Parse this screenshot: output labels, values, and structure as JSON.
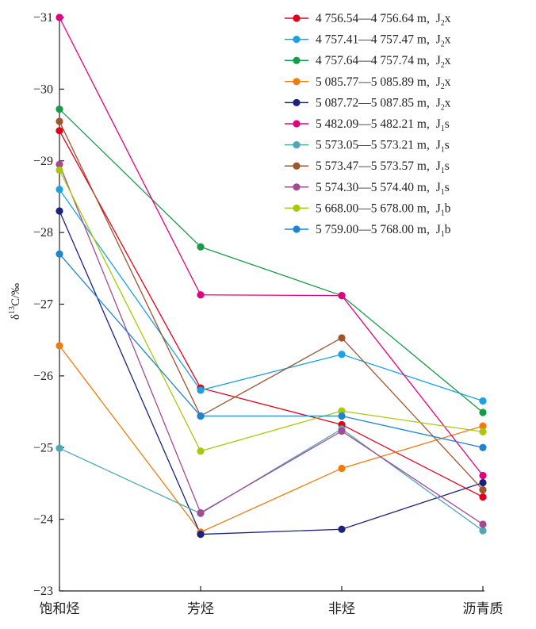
{
  "chart_data": {
    "type": "line",
    "title": "",
    "xlabel": "",
    "ylabel": "δ13C/‰",
    "ylabel_parts": {
      "symbol": "δ",
      "superscript": "13",
      "rest": "C/‰"
    },
    "y_axis_reversed": true,
    "ylim": [
      -23,
      -31
    ],
    "yticks": [
      -31,
      -30,
      -29,
      -28,
      -27,
      -26,
      -25,
      -24,
      -23
    ],
    "ytick_labels": [
      "−31",
      "−30",
      "−29",
      "−28",
      "−27",
      "−26",
      "−25",
      "−24",
      "−23"
    ],
    "categories": [
      "饱和烃",
      "芳烃",
      "非烃",
      "沥青质"
    ],
    "grid": false,
    "legend_position": "top-right",
    "series": [
      {
        "name": "4 756.54—4 756.64 m, J2x",
        "depth": "4 756.54—4 756.64 m",
        "unit": "J",
        "unit_sub": "2",
        "unit_suffix": "x",
        "color": "#e3001b",
        "values": [
          -29.42,
          -25.83,
          -25.32,
          -24.31
        ]
      },
      {
        "name": "4 757.41—4 757.47 m, J2x",
        "depth": "4 757.41—4 757.47 m",
        "unit": "J",
        "unit_sub": "2",
        "unit_suffix": "x",
        "color": "#1aa3e0",
        "values": [
          -28.6,
          -25.8,
          -26.3,
          -25.65
        ]
      },
      {
        "name": "4 757.64—4 757.74 m, J2x",
        "depth": "4 757.64—4 757.74 m",
        "unit": "J",
        "unit_sub": "2",
        "unit_suffix": "x",
        "color": "#169b48",
        "values": [
          -29.72,
          -27.8,
          -27.12,
          -25.49
        ]
      },
      {
        "name": "5 085.77—5 085.89 m, J2x",
        "depth": "5 085.77—5 085.89 m",
        "unit": "J",
        "unit_sub": "2",
        "unit_suffix": "x",
        "color": "#f07c10",
        "values": [
          -26.42,
          -23.82,
          -24.71,
          -25.3
        ]
      },
      {
        "name": "5 087.72—5 087.85 m, J2x",
        "depth": "5 087.72—5 087.85 m",
        "unit": "J",
        "unit_sub": "2",
        "unit_suffix": "x",
        "color": "#1c2181",
        "values": [
          -28.3,
          -23.79,
          -23.86,
          -24.51
        ]
      },
      {
        "name": "5 482.09—5 482.21 m, J1s",
        "depth": "5 482.09—5 482.21 m",
        "unit": "J",
        "unit_sub": "1",
        "unit_suffix": "s",
        "color": "#e4007f",
        "values": [
          -31.0,
          -27.13,
          -27.12,
          -24.61
        ]
      },
      {
        "name": "5 573.05—5 573.21 m, J1s",
        "depth": "5 573.05—5 573.21 m",
        "unit": "J",
        "unit_sub": "1",
        "unit_suffix": "s",
        "color": "#4fa8b8",
        "values": [
          -24.99,
          -24.08,
          -25.26,
          -23.84
        ]
      },
      {
        "name": "5 573.47—5 573.57 m, J1s",
        "depth": "5 573.47—5 573.57 m",
        "unit": "J",
        "unit_sub": "1",
        "unit_suffix": "s",
        "color": "#a0532d",
        "values": [
          -29.55,
          -25.44,
          -26.53,
          -24.41
        ]
      },
      {
        "name": "5 574.30—5 574.40 m, J1s",
        "depth": "5 574.30—5 574.40 m",
        "unit": "J",
        "unit_sub": "1",
        "unit_suffix": "s",
        "color": "#a54a91",
        "values": [
          -28.95,
          -24.09,
          -25.23,
          -23.93
        ]
      },
      {
        "name": "5 668.00—5 678.00 m, J1b",
        "depth": "5 668.00—5 678.00 m",
        "unit": "J",
        "unit_sub": "1",
        "unit_suffix": "b",
        "color": "#a8c80f",
        "values": [
          -28.87,
          -24.95,
          -25.51,
          -25.22
        ]
      },
      {
        "name": "5 759.00—5 768.00 m, J1b",
        "depth": "5 759.00—5 768.00 m",
        "unit": "J",
        "unit_sub": "1",
        "unit_suffix": "b",
        "color": "#1f84cf",
        "values": [
          -27.7,
          -25.44,
          -25.44,
          -25.0
        ]
      }
    ]
  }
}
